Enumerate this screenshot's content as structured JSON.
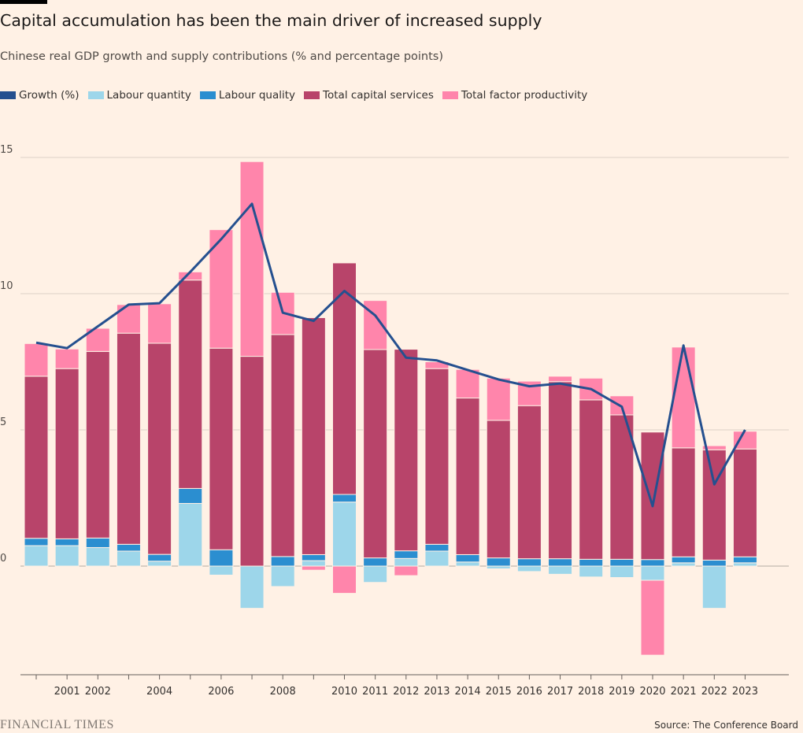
{
  "header": {
    "title": "Capital accumulation has been the main driver of increased supply",
    "subtitle": "Chinese real GDP growth and supply contributions (% and percentage points)"
  },
  "legend": [
    {
      "label": "Growth (%)",
      "color": "#25508f"
    },
    {
      "label": "Labour quantity",
      "color": "#9dd6ea"
    },
    {
      "label": "Labour quality",
      "color": "#2b8ed0"
    },
    {
      "label": "Total capital services",
      "color": "#b8446a"
    },
    {
      "label": "Total factor productivity",
      "color": "#ff85ab"
    }
  ],
  "footer": {
    "logo": "FINANCIAL TIMES",
    "source": "Source: The Conference Board"
  },
  "chart_data": {
    "type": "bar",
    "stacked": true,
    "title": "Capital accumulation has been the main driver of increased supply",
    "subtitle": "Chinese real GDP growth and supply contributions (% and percentage points)",
    "ylim": [
      -4,
      15
    ],
    "yticks": [
      0,
      5,
      10,
      15
    ],
    "grid": true,
    "legend_position": "top-left",
    "categories": [
      "2000",
      "2001",
      "2002",
      "2003",
      "2004",
      "2005",
      "2006",
      "2007",
      "2008",
      "2009",
      "2010",
      "2011",
      "2012",
      "2013",
      "2014",
      "2015",
      "2016",
      "2017",
      "2018",
      "2019",
      "2020",
      "2021",
      "2022",
      "2023"
    ],
    "tick_labels": [
      "",
      "2001",
      "2002",
      "",
      "2004",
      "",
      "2006",
      "",
      "2008",
      "",
      "2010",
      "2011",
      "2012",
      "2013",
      "2014",
      "2015",
      "2016",
      "2017",
      "2018",
      "2019",
      "2020",
      "2021",
      "2022",
      "2023"
    ],
    "series": [
      {
        "name": "Labour quantity",
        "color": "#9dd6ea",
        "values": [
          0.75,
          0.75,
          0.68,
          0.55,
          0.18,
          2.3,
          -0.33,
          -1.55,
          -0.75,
          0.2,
          2.35,
          -0.6,
          0.28,
          0.55,
          0.15,
          -0.1,
          -0.2,
          -0.3,
          -0.4,
          -0.42,
          -0.52,
          0.12,
          -1.55,
          0.12
        ]
      },
      {
        "name": "Labour quality",
        "color": "#2b8ed0",
        "values": [
          0.27,
          0.25,
          0.35,
          0.25,
          0.25,
          0.55,
          0.6,
          0.0,
          0.35,
          0.22,
          0.28,
          0.3,
          0.28,
          0.25,
          0.27,
          0.3,
          0.27,
          0.27,
          0.25,
          0.25,
          0.24,
          0.22,
          0.22,
          0.22
        ]
      },
      {
        "name": "Total capital services",
        "color": "#b8446a",
        "values": [
          5.95,
          6.25,
          6.85,
          7.75,
          7.75,
          7.65,
          7.4,
          7.7,
          8.15,
          8.7,
          8.5,
          7.65,
          7.4,
          6.45,
          5.75,
          5.05,
          5.62,
          6.5,
          5.85,
          5.3,
          4.68,
          4.0,
          4.05,
          3.96
        ]
      },
      {
        "name": "Total factor productivity",
        "color": "#ff85ab",
        "values": [
          1.2,
          0.72,
          0.85,
          1.05,
          1.45,
          0.3,
          4.35,
          7.15,
          1.55,
          -0.15,
          -1.0,
          1.8,
          -0.35,
          0.25,
          1.05,
          1.55,
          0.9,
          0.2,
          0.8,
          0.7,
          -2.75,
          3.7,
          0.15,
          0.65
        ]
      }
    ],
    "line": {
      "name": "Growth (%)",
      "color": "#25508f",
      "values": [
        8.2,
        8.0,
        8.8,
        9.6,
        9.65,
        10.8,
        12.0,
        13.3,
        9.3,
        9.0,
        10.1,
        9.2,
        7.65,
        7.55,
        7.2,
        6.85,
        6.6,
        6.7,
        6.5,
        5.85,
        2.2,
        8.1,
        3.0,
        5.0
      ]
    }
  }
}
